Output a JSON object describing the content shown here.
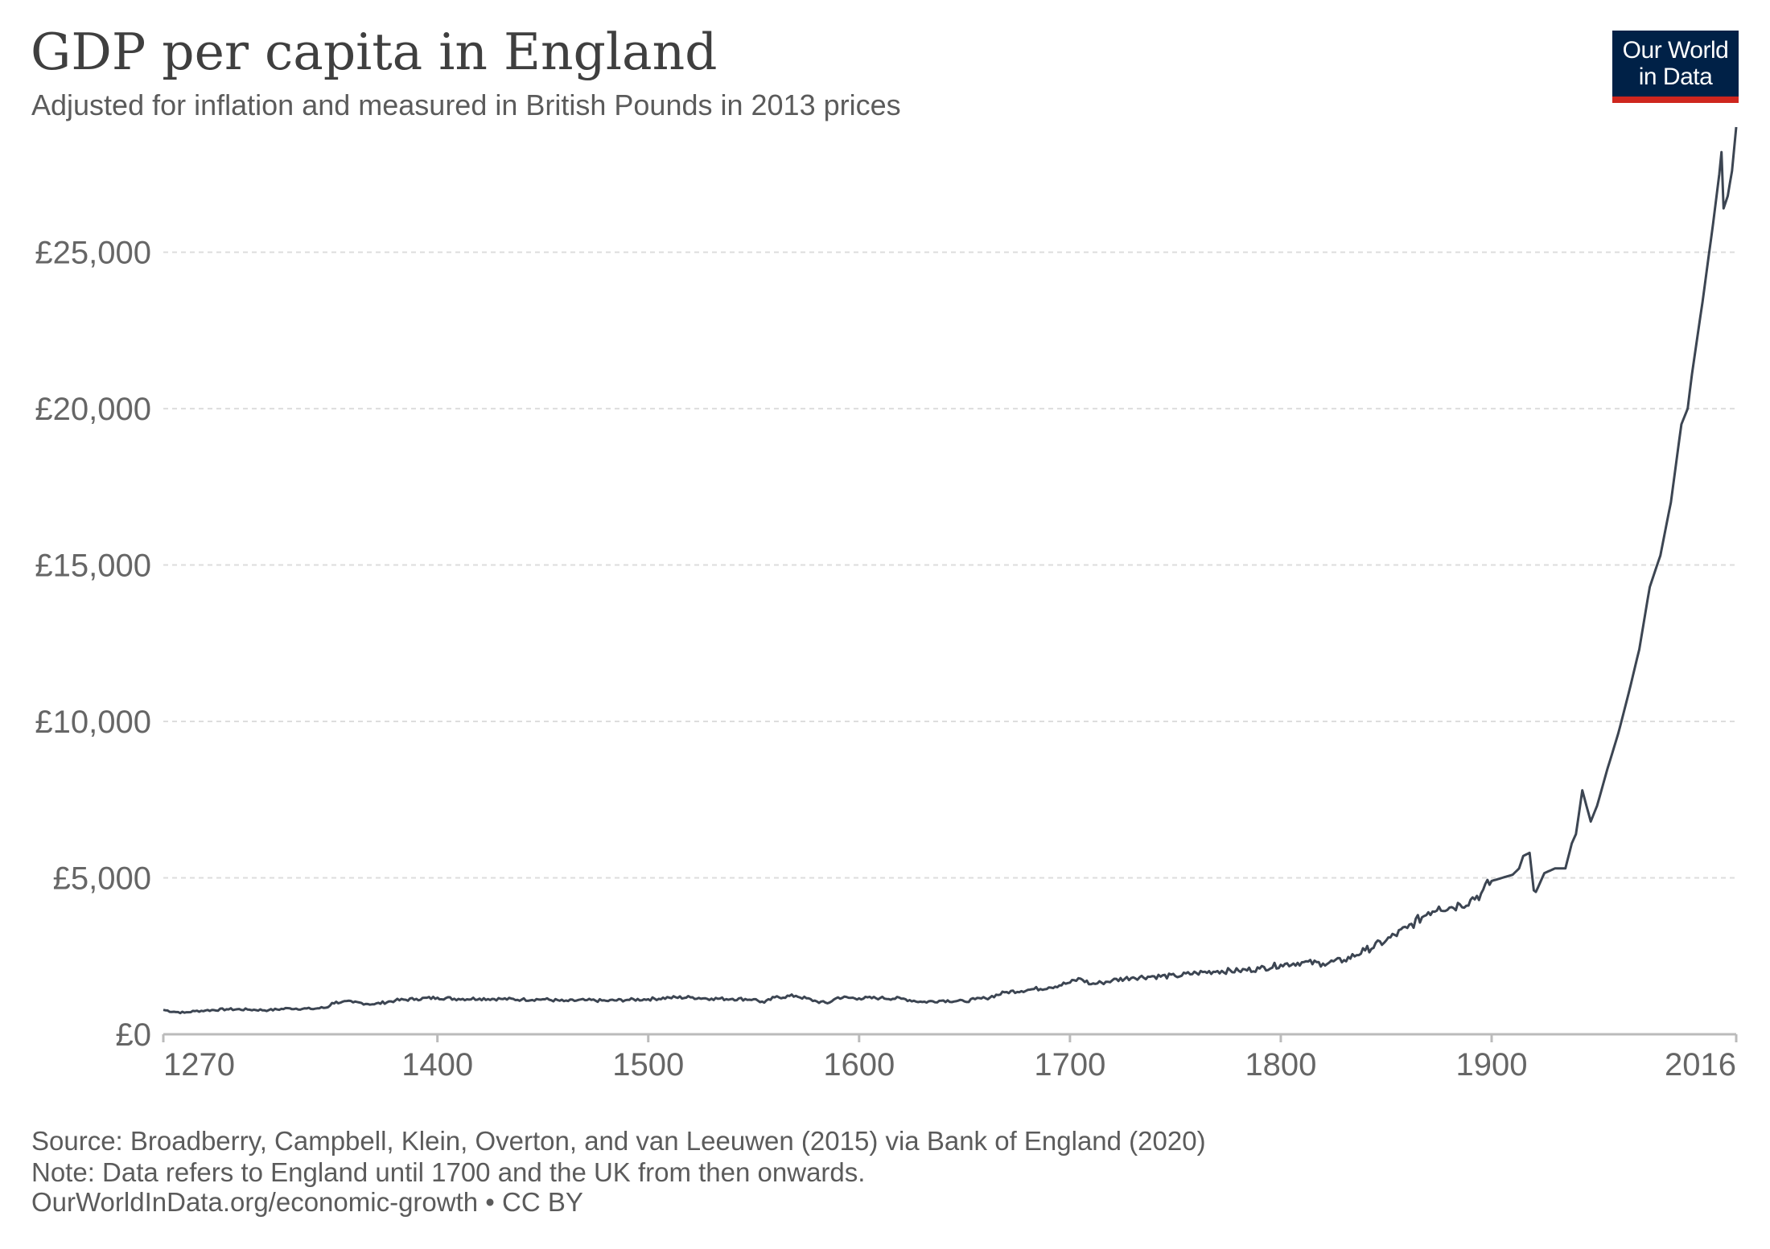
{
  "header": {
    "title": "GDP per capita in England",
    "subtitle": "Adjusted for inflation and measured in British Pounds in 2013 prices",
    "logo_line1": "Our World",
    "logo_line2": "in Data"
  },
  "footer": {
    "source": "Source: Broadberry, Campbell, Klein, Overton, and van Leeuwen (2015) via Bank of England (2020)",
    "note": "Note: Data refers to England until 1700 and the UK from then onwards.",
    "link": "OurWorldInData.org/economic-growth • CC BY"
  },
  "colors": {
    "line": "#3c4552",
    "grid": "#dddddd",
    "axis": "#bbbbbb",
    "tick_text": "#666666",
    "logo_bg": "#002147",
    "logo_bar": "#ce261e"
  },
  "chart_data": {
    "type": "line",
    "title": "GDP per capita in England",
    "subtitle": "Adjusted for inflation and measured in British Pounds in 2013 prices",
    "xlabel": "",
    "ylabel": "",
    "xlim": [
      1270,
      2016
    ],
    "ylim": [
      0,
      29000
    ],
    "grid": true,
    "y_ticks": [
      0,
      5000,
      10000,
      15000,
      20000,
      25000
    ],
    "y_tick_labels": [
      "£0",
      "£5,000",
      "£10,000",
      "£15,000",
      "£20,000",
      "£25,000"
    ],
    "x_ticks": [
      1270,
      1400,
      1500,
      1600,
      1700,
      1800,
      1900,
      2016
    ],
    "x_tick_labels": [
      "1270",
      "1400",
      "1500",
      "1600",
      "1700",
      "1800",
      "1900",
      "2016"
    ],
    "series": [
      {
        "x": [
          1270,
          1275,
          1280,
          1285,
          1290,
          1300,
          1310,
          1320,
          1330,
          1340,
          1348,
          1350,
          1355,
          1360,
          1370,
          1380,
          1390,
          1400,
          1410,
          1420,
          1430,
          1440,
          1450,
          1460,
          1470,
          1480,
          1490,
          1500,
          1510,
          1520,
          1530,
          1540,
          1550,
          1555,
          1560,
          1570,
          1580,
          1585,
          1590,
          1600,
          1610,
          1620,
          1630,
          1640,
          1650,
          1655,
          1660,
          1670,
          1680,
          1690,
          1700,
          1705,
          1710,
          1715,
          1720,
          1730,
          1740,
          1750,
          1760,
          1770,
          1780,
          1790,
          1800,
          1810,
          1820,
          1830,
          1840,
          1850,
          1860,
          1870,
          1875,
          1880,
          1885,
          1890,
          1895,
          1900,
          1905,
          1910,
          1913,
          1915,
          1918,
          1920,
          1921,
          1925,
          1930,
          1935,
          1938,
          1940,
          1943,
          1945,
          1947,
          1950,
          1955,
          1960,
          1965,
          1970,
          1973,
          1975,
          1980,
          1985,
          1990,
          1993,
          1995,
          2000,
          2005,
          2008,
          2009,
          2010,
          2012,
          2014,
          2016
        ],
        "values": [
          780,
          720,
          690,
          740,
          760,
          800,
          790,
          770,
          830,
          810,
          860,
          1000,
          1040,
          1020,
          960,
          1080,
          1130,
          1170,
          1130,
          1140,
          1130,
          1110,
          1120,
          1060,
          1090,
          1070,
          1100,
          1120,
          1170,
          1180,
          1140,
          1130,
          1120,
          1010,
          1180,
          1230,
          1050,
          990,
          1180,
          1150,
          1160,
          1140,
          1030,
          1080,
          1050,
          1120,
          1150,
          1350,
          1420,
          1500,
          1650,
          1780,
          1600,
          1650,
          1720,
          1820,
          1850,
          1860,
          1960,
          2020,
          2030,
          2100,
          2220,
          2300,
          2260,
          2370,
          2680,
          3000,
          3400,
          3900,
          4080,
          4050,
          4150,
          4300,
          4500,
          4900,
          5000,
          5100,
          5300,
          5700,
          5800,
          4600,
          4550,
          5150,
          5300,
          5300,
          6100,
          6400,
          7800,
          7300,
          6800,
          7300,
          8500,
          9600,
          10900,
          12300,
          13500,
          14300,
          15300,
          17000,
          19500,
          20000,
          21100,
          23400,
          25900,
          27500,
          28200,
          26400,
          26800,
          27600,
          29000
        ]
      }
    ]
  }
}
